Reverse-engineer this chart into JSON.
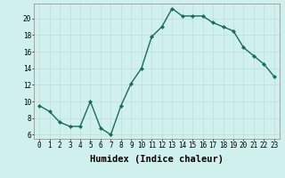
{
  "x": [
    0,
    1,
    2,
    3,
    4,
    5,
    6,
    7,
    8,
    9,
    10,
    11,
    12,
    13,
    14,
    15,
    16,
    17,
    18,
    19,
    20,
    21,
    22,
    23
  ],
  "y": [
    9.5,
    8.8,
    7.5,
    7.0,
    7.0,
    10.0,
    6.8,
    6.0,
    9.5,
    12.2,
    14.0,
    17.8,
    19.0,
    21.2,
    20.3,
    20.3,
    20.3,
    19.5,
    19.0,
    18.5,
    16.5,
    15.5,
    14.5,
    13.0
  ],
  "line_color": "#1a6b5a",
  "marker": "D",
  "marker_size": 2.2,
  "linewidth": 1.0,
  "bg_color": "#cff0ec",
  "grid_color": "#c0dcd8",
  "xlabel": "Humidex (Indice chaleur)",
  "xlim": [
    -0.5,
    23.5
  ],
  "ylim": [
    5.5,
    21.8
  ],
  "yticks": [
    6,
    8,
    10,
    12,
    14,
    16,
    18,
    20
  ],
  "xticks": [
    0,
    1,
    2,
    3,
    4,
    5,
    6,
    7,
    8,
    9,
    10,
    11,
    12,
    13,
    14,
    15,
    16,
    17,
    18,
    19,
    20,
    21,
    22,
    23
  ],
  "tick_label_fontsize": 5.5,
  "xlabel_fontsize": 7.5
}
